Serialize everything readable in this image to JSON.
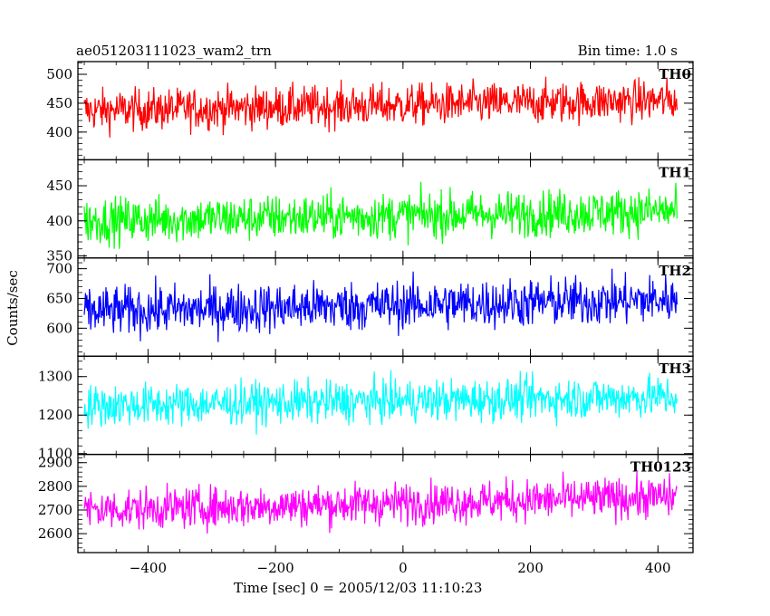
{
  "header": {
    "title": "ae051203111023_wam2_trn",
    "bin_time": "Bin time: 1.0 s"
  },
  "chart_data": {
    "type": "line",
    "xlabel": "Time [sec] 0 = 2005/12/03 11:10:23",
    "ylabel": "Counts/sec",
    "xlim": [
      -510,
      455
    ],
    "x_ticks": [
      -400,
      -200,
      0,
      200,
      400
    ],
    "x_range_data": [
      -500,
      430
    ],
    "panels": [
      {
        "name": "TH0",
        "color": "#ff0000",
        "ylim": [
          352,
          522
        ],
        "y_ticks": [
          400,
          450,
          500
        ],
        "mean_start": 437,
        "mean_end": 455,
        "amplitude": 33
      },
      {
        "name": "TH1",
        "color": "#00ff00",
        "ylim": [
          347,
          487
        ],
        "y_ticks": [
          350,
          400,
          450
        ],
        "mean_start": 400,
        "mean_end": 414,
        "amplitude": 30
      },
      {
        "name": "TH2",
        "color": "#0000ff",
        "ylim": [
          553,
          718
        ],
        "y_ticks": [
          600,
          650,
          700
        ],
        "mean_start": 628,
        "mean_end": 648,
        "amplitude": 38
      },
      {
        "name": "TH3",
        "color": "#00ffff",
        "ylim": [
          1098,
          1353
        ],
        "y_ticks": [
          1100,
          1200,
          1300
        ],
        "mean_start": 1224,
        "mean_end": 1248,
        "amplitude": 50
      },
      {
        "name": "TH0123",
        "color": "#ff00ff",
        "ylim": [
          2520,
          2935
        ],
        "y_ticks": [
          2600,
          2700,
          2800,
          2900
        ],
        "mean_start": 2700,
        "mean_end": 2755,
        "amplitude": 80
      }
    ]
  }
}
